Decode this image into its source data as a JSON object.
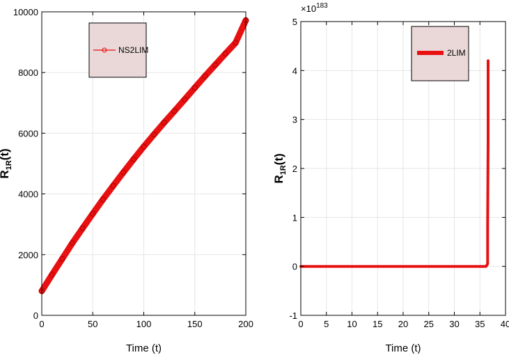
{
  "chart_data": [
    {
      "type": "line",
      "xlabel": "Time (t)",
      "ylabel_main": "R",
      "ylabel_sub": "1R",
      "ylabel_tail": "(t)",
      "xlim": [
        0,
        200
      ],
      "ylim": [
        0,
        10000
      ],
      "xticks": [
        0,
        50,
        100,
        150,
        200
      ],
      "yticks": [
        0,
        2000,
        4000,
        6000,
        8000,
        10000
      ],
      "grid": true,
      "legend_position": "top-left",
      "series": [
        {
          "name": "NS2LIM",
          "color": "#e81010",
          "marker": "circle",
          "x": [
            0,
            10,
            20,
            30,
            40,
            50,
            60,
            70,
            80,
            90,
            100,
            110,
            120,
            130,
            140,
            150,
            160,
            170,
            180,
            190,
            200
          ],
          "y": [
            800,
            1340,
            1860,
            2380,
            2870,
            3350,
            3820,
            4270,
            4710,
            5140,
            5560,
            5960,
            6350,
            6730,
            7110,
            7500,
            7880,
            8250,
            8620,
            8980,
            9720
          ]
        }
      ]
    },
    {
      "type": "line",
      "xlabel": "Time (t)",
      "ylabel_main": "R",
      "ylabel_sub": "1R",
      "ylabel_tail": "(t)",
      "exponent_label": "×10",
      "exponent_power": "183",
      "xlim": [
        0,
        40
      ],
      "ylim": [
        -1,
        5
      ],
      "xticks": [
        0,
        5,
        10,
        15,
        20,
        25,
        30,
        35,
        40
      ],
      "yticks": [
        -1,
        0,
        1,
        2,
        3,
        4,
        5
      ],
      "grid": true,
      "legend_position": "top-right",
      "series": [
        {
          "name": "2LIM",
          "color": "#e81010",
          "x": [
            0,
            10,
            20,
            30,
            36.2,
            36.5,
            36.5,
            36.6,
            36.6,
            36.6
          ],
          "y": [
            0,
            0,
            0,
            0,
            0,
            0.05,
            0.8,
            2.6,
            3.4,
            4.2
          ]
        }
      ]
    }
  ]
}
